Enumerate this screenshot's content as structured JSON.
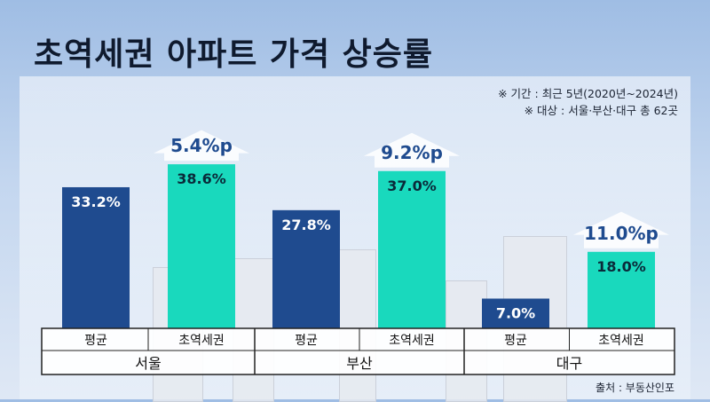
{
  "title": "초역세권 아파트 가격 상승률",
  "notes": [
    "※ 기간 : 최근 5년(2020년~2024년)",
    "※ 대상 : 서울·부산·대구 총 62곳"
  ],
  "source": "출처 : 부동산인포",
  "colors": {
    "average": "#1f4b8f",
    "station": "#19d9bd",
    "diff_text": "#1f4b8f",
    "bar_text": "#ffffff",
    "station_text": "#0a2a3a"
  },
  "chart_data": {
    "type": "bar",
    "groups": [
      "서울",
      "부산",
      "대구"
    ],
    "subcategories": [
      "평균",
      "초역세권"
    ],
    "series": [
      {
        "name": "평균",
        "values": [
          33.2,
          27.8,
          7.0
        ]
      },
      {
        "name": "초역세권",
        "values": [
          38.6,
          37.0,
          18.0
        ]
      }
    ],
    "value_labels": {
      "평균": [
        "33.2%",
        "27.8%",
        "7.0%"
      ],
      "초역세권": [
        "38.6%",
        "37.0%",
        "18.0%"
      ]
    },
    "differences": [
      5.4,
      9.2,
      11.0
    ],
    "difference_labels": [
      "5.4%p",
      "9.2%p",
      "11.0%p"
    ],
    "ylim": [
      0,
      45
    ]
  }
}
